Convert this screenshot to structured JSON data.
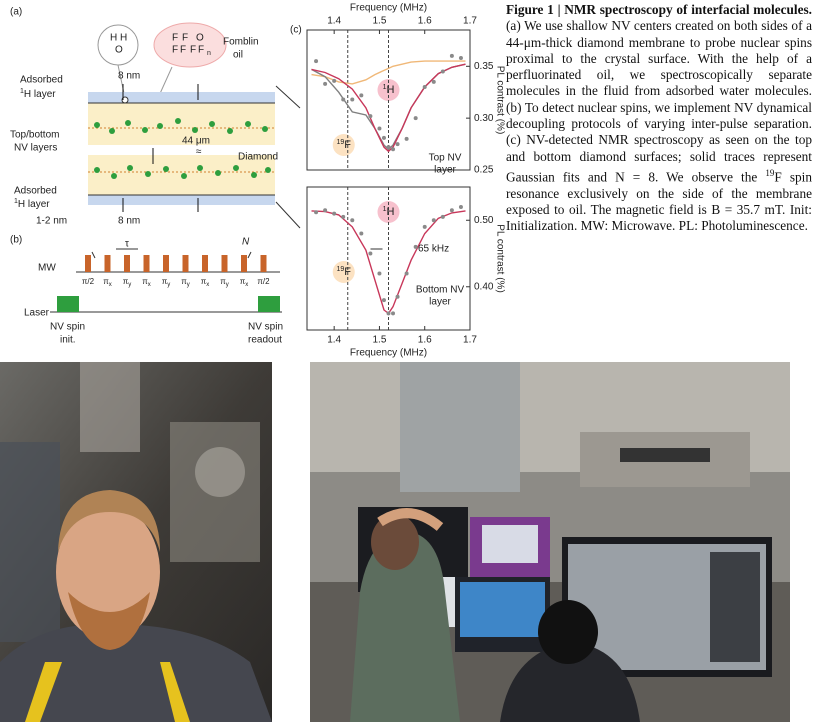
{
  "panel_a": {
    "label": "(a)",
    "water": [
      "H",
      "H",
      "O"
    ],
    "fluoro": [
      "F",
      "F",
      "O",
      "F",
      "F",
      "F",
      "F",
      "n"
    ],
    "oil": [
      "Fomblin",
      "oil"
    ],
    "adsorbed_top": {
      "word": "Adsorbed",
      "sup": "1",
      "text": "H layer"
    },
    "depth_top": "8 nm",
    "nv_layers": [
      "Top/bottom",
      "NV layers"
    ],
    "thickness": "44 μm",
    "break": "≈",
    "diamond": "Diamond",
    "adsorbed_bottom": {
      "word": "Adsorbed",
      "sup": "1",
      "text": "H layer"
    },
    "thin": "1-2 nm",
    "depth_bottom": "8 nm"
  },
  "panel_b": {
    "label": "(b)",
    "mw": "MW",
    "laser": "Laser",
    "tau": "τ",
    "n": "N",
    "pulses": [
      {
        "text": "π/2"
      },
      {
        "text": "π",
        "sub": "x"
      },
      {
        "text": "π",
        "sub": "y"
      },
      {
        "text": "π",
        "sub": "x"
      },
      {
        "text": "π",
        "sub": "y"
      },
      {
        "text": "π",
        "sub": "y"
      },
      {
        "text": "π",
        "sub": "x"
      },
      {
        "text": "π",
        "sub": "y"
      },
      {
        "text": "π",
        "sub": "x"
      },
      {
        "text": "π/2"
      }
    ],
    "init": [
      "NV spin",
      "init."
    ],
    "readout": [
      "NV spin",
      "readout"
    ]
  },
  "panel_c": {
    "label": "(c)"
  },
  "chart_data": [
    {
      "type": "line",
      "xlabel": "Frequency (MHz)",
      "ylabel": "PL contrast (%)",
      "xlim": [
        1.34,
        1.7
      ],
      "xticks": [
        1.4,
        1.5,
        1.6,
        1.7
      ],
      "ylim": [
        0.25,
        0.385
      ],
      "yticks": [
        0.25,
        {
          "value": 0.3,
          "label": "0.30"
        },
        0.35
      ],
      "reference_lines": [
        1.43,
        1.52
      ],
      "h_label": {
        "sup": "1",
        "text": "H"
      },
      "f_label": {
        "sup": "19",
        "text": "F"
      },
      "layer_label": [
        "Top NV",
        "layer"
      ],
      "series": [
        {
          "style": "line",
          "color": "#f0b878",
          "x": [
            1.35,
            1.38,
            1.41,
            1.44,
            1.47,
            1.49,
            1.51,
            1.52,
            1.53,
            1.55,
            1.57,
            1.6,
            1.63,
            1.66,
            1.69
          ],
          "values": [
            0.342,
            0.34,
            0.335,
            0.333,
            0.337,
            0.342,
            0.346,
            0.348,
            0.35,
            0.352,
            0.354,
            0.355,
            0.355,
            0.355,
            0.355
          ]
        },
        {
          "style": "line",
          "color": "#808080",
          "x": [
            1.35,
            1.38,
            1.41,
            1.44,
            1.47,
            1.49,
            1.51,
            1.52,
            1.53,
            1.55,
            1.57,
            1.6,
            1.63,
            1.66,
            1.69
          ],
          "values": [
            0.347,
            0.34,
            0.325,
            0.306,
            0.303,
            0.29,
            0.274,
            0.27,
            0.274,
            0.29,
            0.31,
            0.33,
            0.343,
            0.349,
            0.352
          ]
        },
        {
          "style": "line",
          "color": "#c8375a",
          "x": [
            1.35,
            1.38,
            1.41,
            1.44,
            1.47,
            1.49,
            1.51,
            1.52,
            1.53,
            1.55,
            1.57,
            1.6,
            1.63,
            1.66,
            1.69
          ],
          "values": [
            0.347,
            0.344,
            0.338,
            0.328,
            0.31,
            0.29,
            0.272,
            0.268,
            0.272,
            0.29,
            0.31,
            0.33,
            0.343,
            0.349,
            0.352
          ]
        },
        {
          "style": "points",
          "color": "#8a8a8a",
          "x": [
            1.36,
            1.38,
            1.4,
            1.42,
            1.44,
            1.46,
            1.48,
            1.5,
            1.51,
            1.52,
            1.53,
            1.54,
            1.56,
            1.58,
            1.6,
            1.62,
            1.64,
            1.66,
            1.68
          ],
          "values": [
            0.355,
            0.333,
            0.336,
            0.318,
            0.318,
            0.322,
            0.302,
            0.29,
            0.281,
            0.272,
            0.27,
            0.275,
            0.28,
            0.3,
            0.33,
            0.335,
            0.345,
            0.36,
            0.358
          ]
        }
      ]
    },
    {
      "type": "line",
      "xlabel": "Frequency (MHz)",
      "ylabel": "PL contrast (%)",
      "xlim": [
        1.34,
        1.7
      ],
      "xticks": [
        1.4,
        1.5,
        1.6,
        1.7
      ],
      "ylim": [
        0.335,
        0.55
      ],
      "yticks": [
        {
          "value": 0.4,
          "label": "0.40"
        },
        {
          "value": 0.5,
          "label": "0.50"
        }
      ],
      "reference_lines": [
        1.43,
        1.52
      ],
      "h_label": {
        "sup": "1",
        "text": "H"
      },
      "f_label": {
        "sup": "19",
        "text": "F"
      },
      "layer_label": [
        "Bottom NV",
        "layer"
      ],
      "width_label": "65 kHz",
      "series": [
        {
          "style": "line",
          "color": "#c8375a",
          "x": [
            1.35,
            1.38,
            1.41,
            1.44,
            1.47,
            1.49,
            1.51,
            1.52,
            1.53,
            1.55,
            1.57,
            1.6,
            1.63,
            1.66,
            1.69
          ],
          "values": [
            0.514,
            0.513,
            0.508,
            0.49,
            0.455,
            0.41,
            0.365,
            0.36,
            0.37,
            0.405,
            0.44,
            0.48,
            0.503,
            0.511,
            0.514
          ]
        },
        {
          "style": "points",
          "color": "#8a8a8a",
          "x": [
            1.36,
            1.38,
            1.4,
            1.42,
            1.44,
            1.46,
            1.48,
            1.5,
            1.51,
            1.52,
            1.53,
            1.54,
            1.56,
            1.58,
            1.6,
            1.62,
            1.64,
            1.66,
            1.68
          ],
          "values": [
            0.512,
            0.515,
            0.51,
            0.505,
            0.5,
            0.48,
            0.45,
            0.42,
            0.38,
            0.36,
            0.36,
            0.385,
            0.42,
            0.46,
            0.49,
            0.5,
            0.505,
            0.515,
            0.52
          ]
        }
      ]
    }
  ],
  "caption": {
    "title": "Figure 1 | NMR spectroscopy of interfacial molecules.",
    "body_1": "(a) We use shallow NV centers created on both sides of a 44-μm-thick diamond membrane to probe nuclear spins proximal to the crystal surface. With the help of a perfluorinated oil, we spectroscopically separate molecules in the fluid from adsorbed water molecules. (b) To detect nuclear spins, we implement NV dynamical decoupling protocols of varying inter-pulse separation. (c) NV-detected NMR spectroscopy as seen on the top and bottom diamond surfaces; solid traces represent Gaussian fits and N = 8. We observe the",
    "sup": "19",
    "body_2": "F spin resonance exclusively on the side of the membrane exposed to oil. The magnetic field is B = 35.7 mT. Init: Initialization. MW: Microwave. PL: Photoluminescence."
  }
}
